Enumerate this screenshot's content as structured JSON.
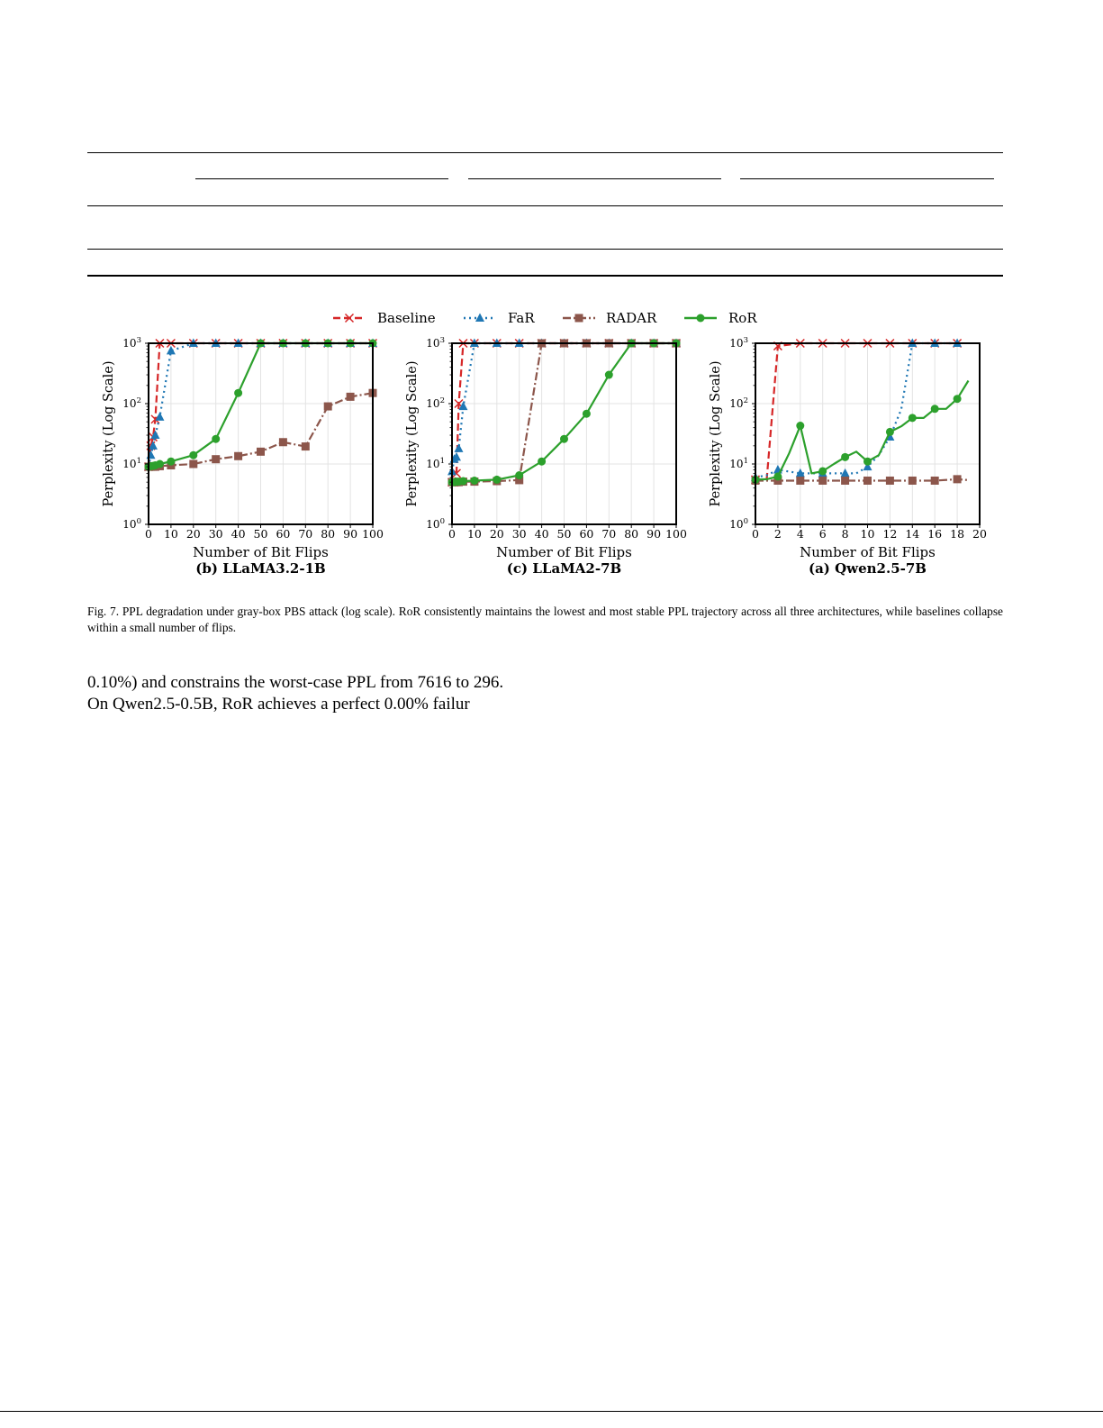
{
  "legend": [
    {
      "name": "Baseline",
      "color": "#d62728",
      "marker": "x",
      "dash": "dashed"
    },
    {
      "name": "FaR",
      "color": "#1f77b4",
      "marker": "triangle",
      "dash": "dotted"
    },
    {
      "name": "RADAR",
      "color": "#8c564b",
      "marker": "square",
      "dash": "dashdot"
    },
    {
      "name": "RoR",
      "color": "#2ca02c",
      "marker": "circle",
      "dash": "solid"
    }
  ],
  "chart_data": [
    {
      "type": "line",
      "title": "(b) LLaMA3.2-1B",
      "xlabel": "Number of Bit Flips",
      "ylabel": "Perplexity (Log Scale)",
      "xlim": [
        0,
        100
      ],
      "ylim": [
        1,
        1000
      ],
      "yscale": "log",
      "grid": true,
      "xticks": [
        0,
        10,
        20,
        30,
        40,
        50,
        60,
        70,
        80,
        90,
        100
      ],
      "yticks": [
        1,
        10,
        100,
        1000
      ],
      "series": [
        {
          "name": "Baseline",
          "x": [
            0,
            1,
            2,
            3,
            5,
            10,
            20,
            30,
            40,
            50,
            60,
            70,
            80,
            90,
            100
          ],
          "y": [
            9,
            20,
            28,
            55,
            1000,
            1000,
            1000,
            1000,
            1000,
            1000,
            1000,
            1000,
            1000,
            1000,
            1000
          ]
        },
        {
          "name": "FaR",
          "x": [
            0,
            1,
            2,
            3,
            5,
            10,
            20,
            30,
            40,
            50,
            60,
            70,
            80,
            90,
            100
          ],
          "y": [
            9,
            14,
            20,
            30,
            60,
            750,
            1000,
            1000,
            1000,
            1000,
            1000,
            1000,
            1000,
            1000,
            1000
          ]
        },
        {
          "name": "RADAR",
          "x": [
            0,
            1,
            2,
            3,
            5,
            10,
            20,
            30,
            40,
            50,
            60,
            70,
            80,
            90,
            100
          ],
          "y": [
            9,
            9,
            9,
            9,
            9.2,
            9.5,
            10,
            12,
            13.5,
            16,
            23,
            19.5,
            90,
            130,
            150
          ]
        },
        {
          "name": "RoR",
          "x": [
            0,
            1,
            2,
            3,
            5,
            10,
            20,
            30,
            40,
            50,
            60,
            70,
            80,
            90,
            100
          ],
          "y": [
            9,
            9.2,
            9.3,
            9.5,
            10,
            11,
            14,
            26,
            150,
            1000,
            1000,
            1000,
            1000,
            1000,
            1000
          ]
        }
      ]
    },
    {
      "type": "line",
      "title": "(c) LLaMA2-7B",
      "xlabel": "Number of Bit Flips",
      "ylabel": "Perplexity (Log Scale)",
      "xlim": [
        0,
        100
      ],
      "ylim": [
        1,
        1000
      ],
      "yscale": "log",
      "grid": true,
      "xticks": [
        0,
        10,
        20,
        30,
        40,
        50,
        60,
        70,
        80,
        90,
        100
      ],
      "yticks": [
        1,
        10,
        100,
        1000
      ],
      "series": [
        {
          "name": "Baseline",
          "x": [
            0,
            1,
            2,
            3,
            5,
            10,
            20,
            30,
            40,
            50,
            60,
            70,
            80,
            90,
            100
          ],
          "y": [
            5,
            5,
            7,
            100,
            1000,
            1000,
            1000,
            1000,
            1000,
            1000,
            1000,
            1000,
            1000,
            1000,
            1000
          ]
        },
        {
          "name": "FaR",
          "x": [
            0,
            1,
            2,
            3,
            5,
            10,
            20,
            30,
            40,
            50,
            60,
            70,
            80,
            90,
            100
          ],
          "y": [
            7.5,
            12,
            13,
            18,
            90,
            1000,
            1000,
            1000,
            1000,
            1000,
            1000,
            1000,
            1000,
            1000,
            1000
          ]
        },
        {
          "name": "RADAR",
          "x": [
            0,
            1,
            2,
            3,
            5,
            10,
            20,
            30,
            40,
            50,
            60,
            70,
            80,
            90,
            100
          ],
          "y": [
            5,
            5,
            5,
            5,
            5.1,
            5.1,
            5.2,
            5.4,
            1000,
            1000,
            1000,
            1000,
            1000,
            1000,
            1000
          ]
        },
        {
          "name": "RoR",
          "x": [
            0,
            1,
            2,
            3,
            5,
            10,
            20,
            30,
            40,
            50,
            60,
            70,
            80,
            90,
            100
          ],
          "y": [
            5,
            5,
            5.1,
            5.1,
            5.2,
            5.3,
            5.5,
            6.5,
            11,
            26,
            68,
            300,
            1000,
            1000,
            1000
          ]
        }
      ]
    },
    {
      "type": "line",
      "title": "(a) Qwen2.5-7B",
      "xlabel": "Number of Bit Flips",
      "ylabel": "Perplexity (Log Scale)",
      "xlim": [
        0,
        20
      ],
      "ylim": [
        1,
        1000
      ],
      "yscale": "log",
      "grid": true,
      "xticks": [
        0,
        2,
        4,
        6,
        8,
        10,
        12,
        14,
        16,
        18,
        20
      ],
      "yticks": [
        1,
        10,
        100,
        1000
      ],
      "series": [
        {
          "name": "Baseline",
          "x": [
            0,
            1,
            2,
            4,
            6,
            8,
            10,
            12,
            14,
            16,
            18
          ],
          "y": [
            5.5,
            5.5,
            900,
            1000,
            1000,
            1000,
            1000,
            1000,
            1000,
            1000,
            1000
          ]
        },
        {
          "name": "FaR",
          "x": [
            0,
            1,
            2,
            3,
            4,
            5,
            6,
            7,
            8,
            9,
            10,
            11,
            12,
            13,
            14,
            16,
            18
          ],
          "y": [
            6,
            6.5,
            8,
            7.5,
            7,
            7,
            7,
            7,
            7,
            7,
            9,
            14,
            28,
            80,
            1000,
            1000,
            1000
          ]
        },
        {
          "name": "RADAR",
          "x": [
            0,
            2,
            4,
            6,
            8,
            10,
            12,
            14,
            16,
            18,
            19
          ],
          "y": [
            5.3,
            5.3,
            5.3,
            5.3,
            5.3,
            5.3,
            5.3,
            5.3,
            5.3,
            5.6,
            5.4
          ]
        },
        {
          "name": "RoR",
          "x": [
            0,
            1,
            2,
            3,
            4,
            5,
            6,
            7,
            8,
            9,
            10,
            11,
            12,
            13,
            14,
            15,
            16,
            17,
            18,
            19
          ],
          "y": [
            5.5,
            5.6,
            6.2,
            15,
            43,
            7,
            7.6,
            10,
            13,
            16,
            11,
            14,
            34,
            42,
            58,
            58,
            82,
            82,
            120,
            240
          ]
        }
      ]
    }
  ],
  "caption": "Fig. 7.  PPL degradation under gray-box PBS attack (log scale). RoR consistently maintains the lowest and most stable PPL trajectory across all three architectures, while baselines collapse within a small number of flips.",
  "body": {
    "line1": "0.10%) and constrains the worst-case PPL from 7616 to 296.",
    "line2": "On Qwen2.5-0.5B, RoR achieves a perfect 0.00% failur"
  }
}
